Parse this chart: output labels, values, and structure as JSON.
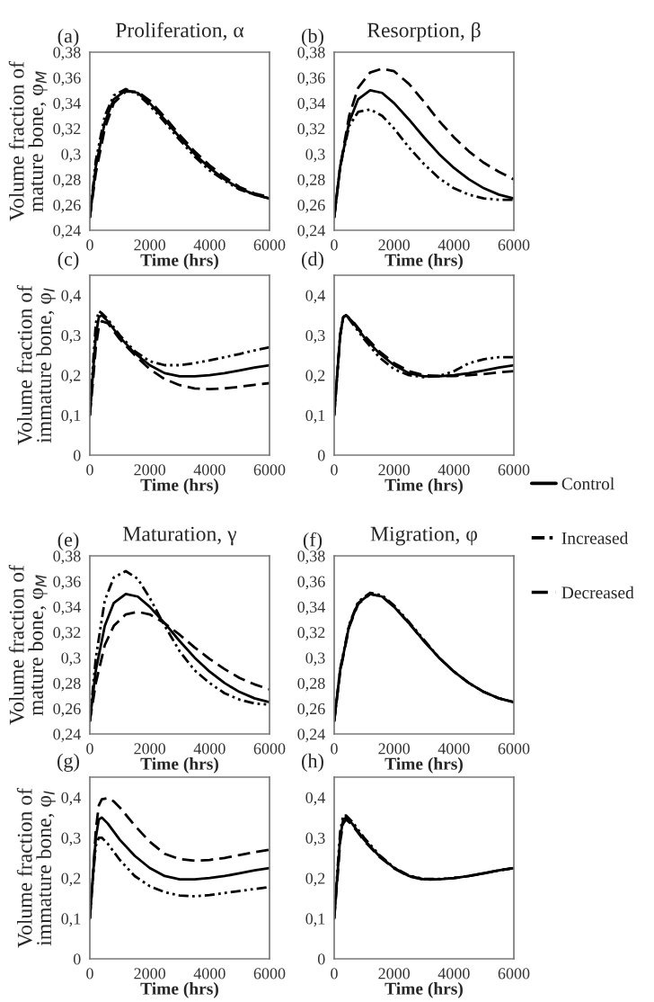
{
  "chart_data": [
    {
      "type": "line",
      "title": "Proliferation, α",
      "annotations": [
        "(a)"
      ],
      "legend": "right",
      "xlabel": "Time (hrs)",
      "ylabel": "Volume fraction of\nmature bone, φ$_{M}$",
      "xlim": [
        0,
        6000
      ],
      "xticks": [
        0,
        2000,
        4000,
        6000
      ],
      "ylim": [
        0.24,
        0.38
      ],
      "yticks": [
        {
          "value": 0.24,
          "label": "0,24"
        },
        {
          "value": 0.26,
          "label": "0,26"
        },
        {
          "value": 0.28,
          "label": "0,28"
        },
        {
          "value": 0.3,
          "label": "0,3"
        },
        {
          "value": 0.32,
          "label": "0,32"
        },
        {
          "value": 0.34,
          "label": "0,34"
        },
        {
          "value": 0.36,
          "label": "0,36"
        },
        {
          "value": 0.38,
          "label": "0,38"
        }
      ],
      "x": [
        0,
        200,
        500,
        800,
        1200,
        1600,
        2000,
        2500,
        3000,
        3500,
        4000,
        4500,
        5000,
        5500,
        6000
      ],
      "series": [
        {
          "name": "Control",
          "color": "#000000",
          "line_style": "solid",
          "values": [
            0.25,
            0.29,
            0.325,
            0.343,
            0.35,
            0.348,
            0.34,
            0.327,
            0.313,
            0.3,
            0.289,
            0.28,
            0.273,
            0.268,
            0.265
          ]
        },
        {
          "name": "Increased",
          "color": "#000000",
          "line_style": "dashdot",
          "values": [
            0.25,
            0.295,
            0.33,
            0.346,
            0.351,
            0.347,
            0.338,
            0.325,
            0.311,
            0.298,
            0.287,
            0.279,
            0.272,
            0.268,
            0.265
          ]
        },
        {
          "name": "Decreased",
          "color": "#000000",
          "line_style": "dashed",
          "values": [
            0.25,
            0.285,
            0.32,
            0.34,
            0.349,
            0.349,
            0.342,
            0.329,
            0.315,
            0.302,
            0.291,
            0.282,
            0.274,
            0.269,
            0.266
          ]
        }
      ]
    },
    {
      "type": "line",
      "title": "Resorption, β",
      "annotations": [
        "(b)"
      ],
      "xlabel": "Time (hrs)",
      "xlim": [
        0,
        6000
      ],
      "xticks": [
        0,
        2000,
        4000,
        6000
      ],
      "ylim": [
        0.24,
        0.38
      ],
      "yticks": [
        {
          "value": 0.24,
          "label": "0,24"
        },
        {
          "value": 0.26,
          "label": "0,26"
        },
        {
          "value": 0.28,
          "label": "0,28"
        },
        {
          "value": 0.3,
          "label": "0,3"
        },
        {
          "value": 0.32,
          "label": "0,32"
        },
        {
          "value": 0.34,
          "label": "0,34"
        },
        {
          "value": 0.36,
          "label": "0,36"
        },
        {
          "value": 0.38,
          "label": "0,38"
        }
      ],
      "x": [
        0,
        200,
        500,
        800,
        1200,
        1600,
        2000,
        2500,
        3000,
        3500,
        4000,
        4500,
        5000,
        5500,
        6000
      ],
      "series": [
        {
          "color": "#000000",
          "line_style": "solid",
          "values": [
            0.25,
            0.29,
            0.325,
            0.343,
            0.35,
            0.348,
            0.34,
            0.327,
            0.313,
            0.3,
            0.289,
            0.28,
            0.273,
            0.268,
            0.265
          ]
        },
        {
          "color": "#000000",
          "line_style": "dashdot",
          "values": [
            0.25,
            0.29,
            0.322,
            0.333,
            0.335,
            0.33,
            0.32,
            0.305,
            0.292,
            0.281,
            0.273,
            0.268,
            0.265,
            0.264,
            0.264
          ]
        },
        {
          "color": "#000000",
          "line_style": "dashed",
          "values": [
            0.25,
            0.29,
            0.33,
            0.352,
            0.364,
            0.367,
            0.365,
            0.355,
            0.341,
            0.326,
            0.313,
            0.302,
            0.293,
            0.286,
            0.28
          ]
        }
      ]
    },
    {
      "type": "line",
      "annotations": [
        "(c)"
      ],
      "xlabel": "Time (hrs)",
      "ylabel": "Volume fraction of\nimmature bone, φ$_{I}$",
      "xlim": [
        0,
        6000
      ],
      "xticks": [
        0,
        2000,
        4000,
        6000
      ],
      "ylim": [
        0,
        0.45
      ],
      "yticks": [
        0,
        {
          "value": 0.1,
          "label": "0,1"
        },
        {
          "value": 0.2,
          "label": "0,2"
        },
        {
          "value": 0.3,
          "label": "0,3"
        },
        {
          "value": 0.4,
          "label": "0,4"
        }
      ],
      "x": [
        0,
        100,
        200,
        300,
        400,
        600,
        800,
        1000,
        1500,
        2000,
        2500,
        3000,
        3500,
        4000,
        4500,
        5000,
        5500,
        6000
      ],
      "series": [
        {
          "color": "#000000",
          "line_style": "solid",
          "values": [
            0.1,
            0.2,
            0.3,
            0.345,
            0.35,
            0.335,
            0.315,
            0.295,
            0.255,
            0.225,
            0.205,
            0.197,
            0.197,
            0.2,
            0.205,
            0.212,
            0.219,
            0.225
          ]
        },
        {
          "color": "#000000",
          "line_style": "dashdot",
          "values": [
            0.1,
            0.22,
            0.33,
            0.36,
            0.355,
            0.34,
            0.32,
            0.3,
            0.26,
            0.235,
            0.225,
            0.225,
            0.23,
            0.237,
            0.245,
            0.253,
            0.262,
            0.27
          ]
        },
        {
          "color": "#000000",
          "line_style": "dashed",
          "values": [
            0.1,
            0.18,
            0.27,
            0.32,
            0.335,
            0.33,
            0.31,
            0.29,
            0.25,
            0.215,
            0.19,
            0.175,
            0.167,
            0.165,
            0.167,
            0.171,
            0.176,
            0.18
          ]
        }
      ]
    },
    {
      "type": "line",
      "annotations": [
        "(d)"
      ],
      "xlabel": "Time (hrs)",
      "xlim": [
        0,
        6000
      ],
      "xticks": [
        0,
        2000,
        4000,
        6000
      ],
      "ylim": [
        0,
        0.45
      ],
      "yticks": [
        0,
        {
          "value": 0.1,
          "label": "0,1"
        },
        {
          "value": 0.2,
          "label": "0,2"
        },
        {
          "value": 0.3,
          "label": "0,3"
        },
        {
          "value": 0.4,
          "label": "0,4"
        }
      ],
      "x": [
        0,
        100,
        200,
        300,
        400,
        600,
        800,
        1000,
        1500,
        2000,
        2500,
        3000,
        3500,
        4000,
        4500,
        5000,
        5500,
        6000
      ],
      "series": [
        {
          "color": "#000000",
          "line_style": "solid",
          "values": [
            0.1,
            0.2,
            0.3,
            0.345,
            0.35,
            0.335,
            0.315,
            0.295,
            0.255,
            0.225,
            0.205,
            0.197,
            0.197,
            0.2,
            0.205,
            0.212,
            0.219,
            0.225
          ]
        },
        {
          "color": "#000000",
          "line_style": "dashdot",
          "values": [
            0.1,
            0.2,
            0.3,
            0.345,
            0.35,
            0.33,
            0.31,
            0.29,
            0.245,
            0.215,
            0.2,
            0.195,
            0.198,
            0.21,
            0.23,
            0.24,
            0.245,
            0.245
          ]
        },
        {
          "color": "#000000",
          "line_style": "dashed",
          "values": [
            0.1,
            0.2,
            0.3,
            0.345,
            0.35,
            0.337,
            0.318,
            0.3,
            0.26,
            0.23,
            0.21,
            0.2,
            0.198,
            0.198,
            0.2,
            0.203,
            0.207,
            0.21
          ]
        }
      ]
    },
    {
      "type": "line",
      "title": "Maturation, γ",
      "annotations": [
        "(e)"
      ],
      "xlabel": "Time (hrs)",
      "ylabel": "Volume fraction of\nmature bone, φ$_{M}$",
      "xlim": [
        0,
        6000
      ],
      "xticks": [
        0,
        2000,
        4000,
        6000
      ],
      "ylim": [
        0.24,
        0.38
      ],
      "yticks": [
        {
          "value": 0.24,
          "label": "0,24"
        },
        {
          "value": 0.26,
          "label": "0,26"
        },
        {
          "value": 0.28,
          "label": "0,28"
        },
        {
          "value": 0.3,
          "label": "0,3"
        },
        {
          "value": 0.32,
          "label": "0,32"
        },
        {
          "value": 0.34,
          "label": "0,34"
        },
        {
          "value": 0.36,
          "label": "0,36"
        },
        {
          "value": 0.38,
          "label": "0,38"
        }
      ],
      "x": [
        0,
        200,
        500,
        800,
        1200,
        1600,
        2000,
        2500,
        3000,
        3500,
        4000,
        4500,
        5000,
        5500,
        6000
      ],
      "series": [
        {
          "color": "#000000",
          "line_style": "solid",
          "values": [
            0.25,
            0.29,
            0.325,
            0.343,
            0.35,
            0.348,
            0.34,
            0.327,
            0.313,
            0.3,
            0.289,
            0.28,
            0.273,
            0.268,
            0.265
          ]
        },
        {
          "color": "#000000",
          "line_style": "dashdot",
          "values": [
            0.25,
            0.3,
            0.345,
            0.363,
            0.368,
            0.362,
            0.347,
            0.325,
            0.305,
            0.29,
            0.28,
            0.272,
            0.267,
            0.264,
            0.263
          ]
        },
        {
          "color": "#000000",
          "line_style": "dashed",
          "values": [
            0.25,
            0.28,
            0.31,
            0.325,
            0.334,
            0.336,
            0.334,
            0.327,
            0.318,
            0.308,
            0.299,
            0.291,
            0.284,
            0.279,
            0.275
          ]
        }
      ]
    },
    {
      "type": "line",
      "title": "Migration, φ",
      "annotations": [
        "(f)"
      ],
      "xlabel": "Time (hrs)",
      "xlim": [
        0,
        6000
      ],
      "xticks": [
        0,
        2000,
        4000,
        6000
      ],
      "ylim": [
        0.24,
        0.38
      ],
      "yticks": [
        {
          "value": 0.24,
          "label": "0,24"
        },
        {
          "value": 0.26,
          "label": "0,26"
        },
        {
          "value": 0.28,
          "label": "0,28"
        },
        {
          "value": 0.3,
          "label": "0,3"
        },
        {
          "value": 0.32,
          "label": "0,32"
        },
        {
          "value": 0.34,
          "label": "0,34"
        },
        {
          "value": 0.36,
          "label": "0,36"
        },
        {
          "value": 0.38,
          "label": "0,38"
        }
      ],
      "x": [
        0,
        200,
        500,
        800,
        1200,
        1600,
        2000,
        2500,
        3000,
        3500,
        4000,
        4500,
        5000,
        5500,
        6000
      ],
      "series": [
        {
          "color": "#000000",
          "line_style": "solid",
          "values": [
            0.25,
            0.29,
            0.325,
            0.343,
            0.35,
            0.348,
            0.34,
            0.327,
            0.313,
            0.3,
            0.289,
            0.28,
            0.273,
            0.268,
            0.265
          ]
        },
        {
          "color": "#000000",
          "line_style": "dashdot",
          "values": [
            0.25,
            0.291,
            0.326,
            0.344,
            0.351,
            0.349,
            0.341,
            0.328,
            0.314,
            0.3,
            0.289,
            0.28,
            0.273,
            0.268,
            0.265
          ]
        },
        {
          "color": "#000000",
          "line_style": "dashed",
          "values": [
            0.25,
            0.289,
            0.324,
            0.342,
            0.35,
            0.348,
            0.34,
            0.327,
            0.313,
            0.3,
            0.289,
            0.28,
            0.273,
            0.268,
            0.265
          ]
        }
      ]
    },
    {
      "type": "line",
      "annotations": [
        "(g)"
      ],
      "xlabel": "Time (hrs)",
      "ylabel": "Volume fraction of\nimmature bone, φ$_{I}$",
      "xlim": [
        0,
        6000
      ],
      "xticks": [
        0,
        2000,
        4000,
        6000
      ],
      "ylim": [
        0,
        0.45
      ],
      "yticks": [
        0,
        {
          "value": 0.1,
          "label": "0,1"
        },
        {
          "value": 0.2,
          "label": "0,2"
        },
        {
          "value": 0.3,
          "label": "0,3"
        },
        {
          "value": 0.4,
          "label": "0,4"
        }
      ],
      "x": [
        0,
        100,
        200,
        300,
        400,
        600,
        800,
        1000,
        1500,
        2000,
        2500,
        3000,
        3500,
        4000,
        4500,
        5000,
        5500,
        6000
      ],
      "series": [
        {
          "color": "#000000",
          "line_style": "solid",
          "values": [
            0.1,
            0.2,
            0.3,
            0.345,
            0.35,
            0.335,
            0.315,
            0.295,
            0.255,
            0.225,
            0.205,
            0.197,
            0.197,
            0.2,
            0.205,
            0.212,
            0.219,
            0.225
          ]
        },
        {
          "color": "#000000",
          "line_style": "dashdot",
          "values": [
            0.1,
            0.2,
            0.28,
            0.3,
            0.3,
            0.285,
            0.265,
            0.245,
            0.205,
            0.18,
            0.165,
            0.157,
            0.155,
            0.158,
            0.163,
            0.168,
            0.173,
            0.178
          ]
        },
        {
          "color": "#000000",
          "line_style": "dashed",
          "values": [
            0.1,
            0.2,
            0.32,
            0.38,
            0.395,
            0.398,
            0.39,
            0.375,
            0.33,
            0.29,
            0.26,
            0.247,
            0.243,
            0.245,
            0.25,
            0.257,
            0.264,
            0.27
          ]
        }
      ]
    },
    {
      "type": "line",
      "annotations": [
        "(h)"
      ],
      "xlabel": "Time (hrs)",
      "xlim": [
        0,
        6000
      ],
      "xticks": [
        0,
        2000,
        4000,
        6000
      ],
      "ylim": [
        0,
        0.45
      ],
      "yticks": [
        0,
        {
          "value": 0.1,
          "label": "0,1"
        },
        {
          "value": 0.2,
          "label": "0,2"
        },
        {
          "value": 0.3,
          "label": "0,3"
        },
        {
          "value": 0.4,
          "label": "0,4"
        }
      ],
      "x": [
        0,
        100,
        200,
        300,
        400,
        600,
        800,
        1000,
        1500,
        2000,
        2500,
        3000,
        3500,
        4000,
        4500,
        5000,
        5500,
        6000
      ],
      "series": [
        {
          "color": "#000000",
          "line_style": "solid",
          "values": [
            0.1,
            0.2,
            0.3,
            0.345,
            0.35,
            0.335,
            0.315,
            0.295,
            0.255,
            0.225,
            0.205,
            0.197,
            0.197,
            0.2,
            0.205,
            0.212,
            0.219,
            0.225
          ]
        },
        {
          "color": "#000000",
          "line_style": "dashdot",
          "values": [
            0.1,
            0.21,
            0.315,
            0.355,
            0.355,
            0.34,
            0.32,
            0.3,
            0.258,
            0.226,
            0.206,
            0.198,
            0.198,
            0.2,
            0.205,
            0.212,
            0.219,
            0.225
          ]
        },
        {
          "color": "#000000",
          "line_style": "dashed",
          "values": [
            0.1,
            0.19,
            0.29,
            0.335,
            0.345,
            0.332,
            0.312,
            0.292,
            0.253,
            0.224,
            0.204,
            0.196,
            0.197,
            0.2,
            0.205,
            0.212,
            0.219,
            0.225
          ]
        }
      ]
    }
  ]
}
